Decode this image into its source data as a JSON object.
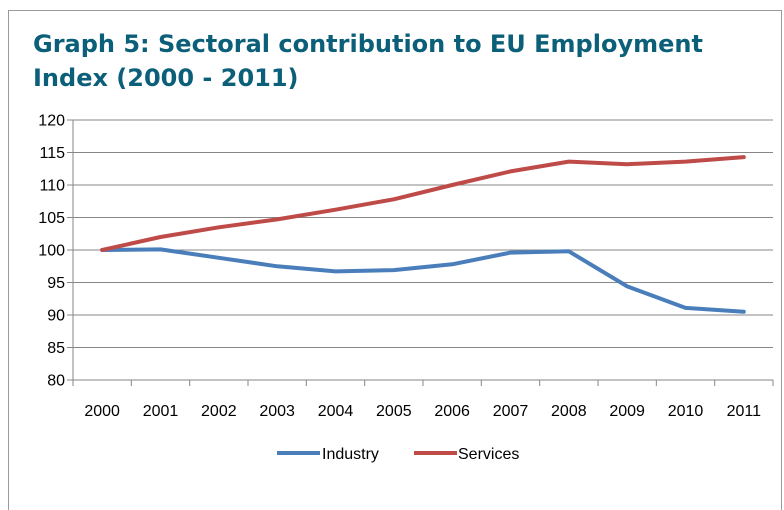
{
  "chart_data": {
    "type": "line",
    "title": "Graph 5: Sectoral contribution to EU Employment Index (2000 - 2011)",
    "xlabel": "",
    "ylabel": "",
    "ylim": [
      80,
      120
    ],
    "y_ticks": [
      "80",
      "85",
      "90",
      "95",
      "100",
      "105",
      "110",
      "115",
      "120"
    ],
    "categories": [
      "2000",
      "2001",
      "2002",
      "2003",
      "2004",
      "2005",
      "2006",
      "2007",
      "2008",
      "2009",
      "2010",
      "2011"
    ],
    "series": [
      {
        "name": "Industry",
        "color": "#4a7ebb",
        "values": [
          100.0,
          100.1,
          98.8,
          97.5,
          96.7,
          96.9,
          97.8,
          99.6,
          99.8,
          94.4,
          91.1,
          90.5
        ]
      },
      {
        "name": "Services",
        "color": "#be4b48",
        "values": [
          100.0,
          102.0,
          103.5,
          104.7,
          106.2,
          107.8,
          110.0,
          112.1,
          113.6,
          113.2,
          113.6,
          114.3
        ]
      }
    ],
    "grid": true,
    "legend_position": "bottom"
  }
}
